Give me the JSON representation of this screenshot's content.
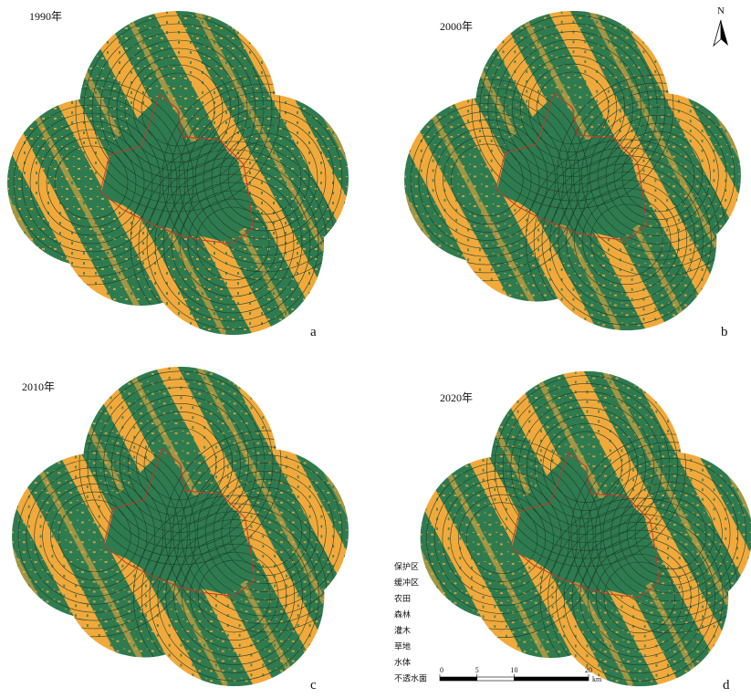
{
  "panels": [
    {
      "title": "1990年",
      "label": "a"
    },
    {
      "title": "2000年",
      "label": "b"
    },
    {
      "title": "2010年",
      "label": "c"
    },
    {
      "title": "2020年",
      "label": "d"
    }
  ],
  "north_arrow": "N",
  "legend": [
    "保护区",
    "缓冲区",
    "农田",
    "森林",
    "灌木",
    "草地",
    "水体",
    "不透水面"
  ],
  "scale_bar": {
    "ticks": [
      0,
      5,
      10,
      20
    ],
    "unit": "km"
  }
}
